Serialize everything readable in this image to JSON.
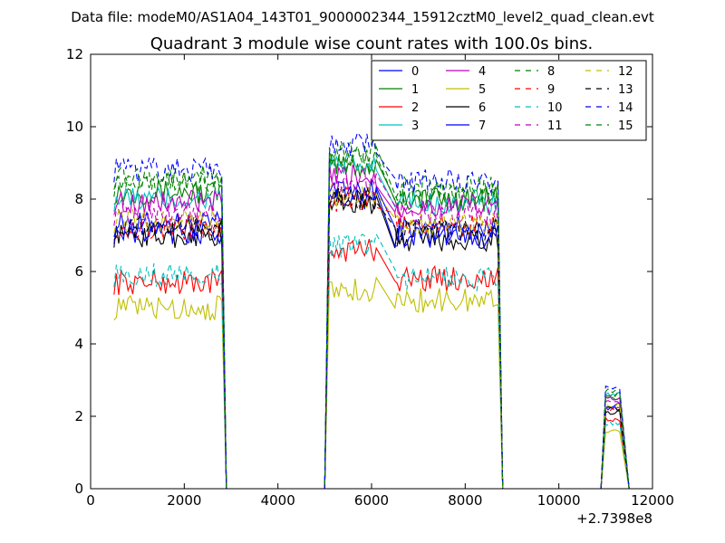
{
  "chart_data": {
    "type": "line",
    "suptitle": "Data file: modeM0/AS1A04_143T01_9000002344_15912cztM0_level2_quad_clean.evt",
    "title": "Quadrant 3 module wise count rates with 100.0s bins.",
    "xlabel": "",
    "ylabel": "",
    "x_offset_label": "+2.7398e8",
    "xlim": [
      0,
      12000
    ],
    "ylim": [
      0,
      12
    ],
    "xticks": [
      0,
      2000,
      4000,
      6000,
      8000,
      10000,
      12000
    ],
    "yticks": [
      0,
      2,
      4,
      6,
      8,
      10,
      12
    ],
    "grid": false,
    "legend_position": "top-right",
    "legend_columns": 4,
    "segments": [
      {
        "x_start": 500,
        "x_end": 2800,
        "on_to_x": 2900,
        "off_from_x": null
      },
      {
        "x_start": 5100,
        "x_end": 6100,
        "on_to_x": null,
        "off_from_x": 5000
      },
      {
        "x_start": 6500,
        "x_end": 8700,
        "on_to_x": 8800,
        "off_from_x": null
      },
      {
        "x_start": 11000,
        "x_end": 11300,
        "on_to_x": 11500,
        "off_from_x": 10900
      }
    ],
    "series": [
      {
        "name": "0",
        "color": "#0000ff",
        "dash": "solid",
        "base_levels": [
          7.3,
          8.0,
          7.2,
          2.3
        ]
      },
      {
        "name": "1",
        "color": "#008000",
        "dash": "solid",
        "base_levels": [
          8.2,
          8.9,
          8.0,
          2.5
        ]
      },
      {
        "name": "2",
        "color": "#ff0000",
        "dash": "solid",
        "base_levels": [
          5.7,
          6.6,
          5.8,
          1.9
        ]
      },
      {
        "name": "3",
        "color": "#00bfbf",
        "dash": "solid",
        "base_levels": [
          8.0,
          8.9,
          7.9,
          2.6
        ]
      },
      {
        "name": "4",
        "color": "#bf00bf",
        "dash": "solid",
        "base_levels": [
          7.9,
          8.6,
          7.8,
          2.5
        ]
      },
      {
        "name": "5",
        "color": "#bfbf00",
        "dash": "solid",
        "base_levels": [
          5.0,
          5.5,
          5.2,
          1.6
        ]
      },
      {
        "name": "6",
        "color": "#000000",
        "dash": "solid",
        "base_levels": [
          7.0,
          7.9,
          6.9,
          2.1
        ]
      },
      {
        "name": "7",
        "color": "#0000ff",
        "dash": "solid",
        "base_levels": [
          7.1,
          8.2,
          7.0,
          2.2
        ]
      },
      {
        "name": "8",
        "color": "#008000",
        "dash": "dashed",
        "base_levels": [
          8.6,
          9.3,
          8.3,
          2.7
        ]
      },
      {
        "name": "9",
        "color": "#ff0000",
        "dash": "dashed",
        "base_levels": [
          7.2,
          8.0,
          7.3,
          2.2
        ]
      },
      {
        "name": "10",
        "color": "#00bfbf",
        "dash": "dashed",
        "base_levels": [
          5.9,
          6.7,
          5.8,
          1.8
        ]
      },
      {
        "name": "11",
        "color": "#bf00bf",
        "dash": "dashed",
        "base_levels": [
          7.6,
          8.5,
          7.6,
          2.4
        ]
      },
      {
        "name": "12",
        "color": "#bfbf00",
        "dash": "dashed",
        "base_levels": [
          7.4,
          8.1,
          7.3,
          2.3
        ]
      },
      {
        "name": "13",
        "color": "#000000",
        "dash": "dashed",
        "base_levels": [
          7.2,
          8.0,
          7.1,
          2.2
        ]
      },
      {
        "name": "14",
        "color": "#0000ff",
        "dash": "dashed",
        "base_levels": [
          8.8,
          9.5,
          8.5,
          2.8
        ]
      },
      {
        "name": "15",
        "color": "#008000",
        "dash": "dashed",
        "base_levels": [
          8.4,
          9.1,
          8.1,
          2.6
        ]
      }
    ]
  }
}
